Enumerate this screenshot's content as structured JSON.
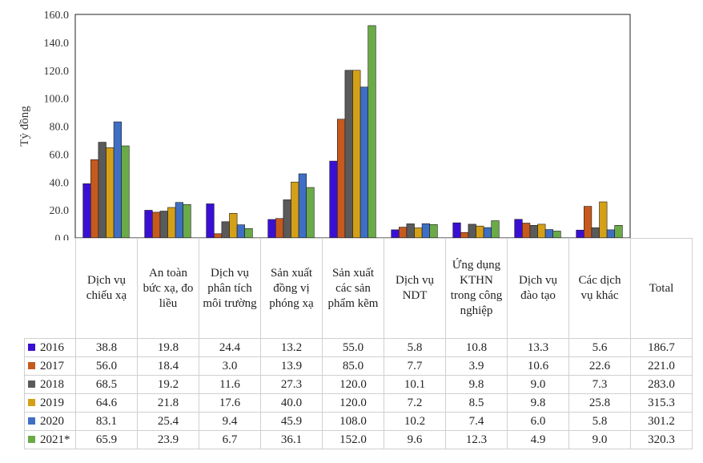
{
  "chart_data": {
    "type": "bar",
    "ylabel": "Tỷ đồng",
    "ylim": [
      0,
      160
    ],
    "yticks": [
      "0.0",
      "20.0",
      "40.0",
      "60.0",
      "80.0",
      "100.0",
      "120.0",
      "140.0",
      "160.0"
    ],
    "categories": [
      "Dịch vụ chiếu xạ",
      "An toàn bức xạ, đo liều",
      "Dịch vụ phân tích môi trường",
      "Sản xuất đồng vị phóng xạ",
      "Sản xuất các sản phẩm kẽm",
      "Dịch vụ NDT",
      "Ứng dụng KTHN trong công nghiệp",
      "Dịch vụ đào tạo",
      "Các dịch vụ khác"
    ],
    "total_label": "Total",
    "grid": false,
    "legend_placement": "table-rows",
    "series": [
      {
        "name": "2016",
        "color": "#3a0fd4",
        "values": [
          38.8,
          19.8,
          24.4,
          13.2,
          55.0,
          5.8,
          10.8,
          13.3,
          5.6
        ],
        "total": "186.7"
      },
      {
        "name": "2017",
        "color": "#c65a1e",
        "values": [
          56.0,
          18.4,
          3.0,
          13.9,
          85.0,
          7.7,
          3.9,
          10.6,
          22.6
        ],
        "total": "221.0"
      },
      {
        "name": "2018",
        "color": "#5a5a5a",
        "values": [
          68.5,
          19.2,
          11.6,
          27.3,
          120.0,
          10.1,
          9.8,
          9.0,
          7.3
        ],
        "total": "283.0"
      },
      {
        "name": "2019",
        "color": "#d4a017",
        "values": [
          64.6,
          21.8,
          17.6,
          40.0,
          120.0,
          7.2,
          8.5,
          9.8,
          25.8
        ],
        "total": "315.3"
      },
      {
        "name": "2020",
        "color": "#3f6fc4",
        "values": [
          83.1,
          25.4,
          9.4,
          45.9,
          108.0,
          10.2,
          7.4,
          6.0,
          5.8
        ],
        "total": "301.2"
      },
      {
        "name": "2021*",
        "color": "#6aaa47",
        "values": [
          65.9,
          23.9,
          6.7,
          36.1,
          152.0,
          9.6,
          12.3,
          4.9,
          9.0
        ],
        "total": "320.3"
      }
    ]
  }
}
